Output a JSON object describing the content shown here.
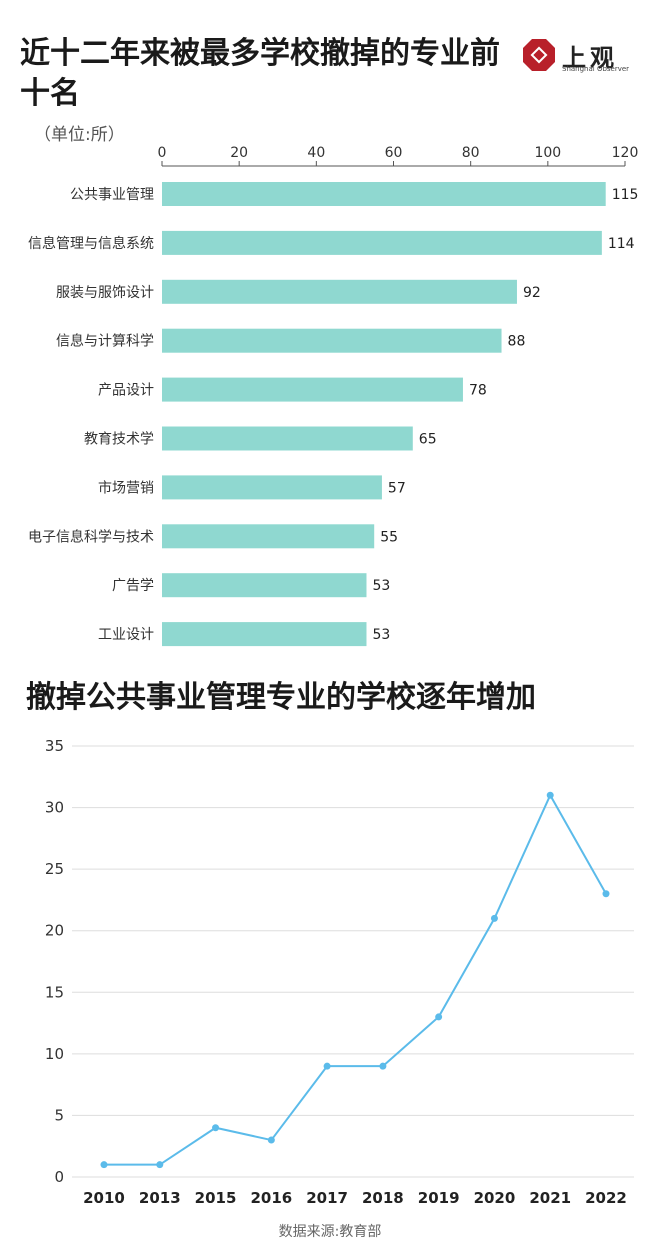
{
  "header": {
    "title": "近十二年来被最多学校撤掉的专业前十名",
    "unit": "（单位:所）",
    "logo_cn": "上观",
    "logo_en": "Shanghai Observer",
    "logo_color": "#b8202a"
  },
  "line_title": "撤掉公共事业管理专业的学校逐年增加",
  "source": "数据来源:教育部",
  "colors": {
    "bar": "#8fd8d0",
    "line": "#5bbbea",
    "grid": "#dddddd"
  },
  "chart_data": [
    {
      "type": "bar",
      "orientation": "horizontal",
      "title": "近十二年来被最多学校撤掉的专业前十名",
      "xlabel": "（单位:所）",
      "xlim": [
        0,
        120
      ],
      "xticks": [
        0,
        20,
        40,
        60,
        80,
        100,
        120
      ],
      "categories": [
        "公共事业管理",
        "信息管理与信息系统",
        "服装与服饰设计",
        "信息与计算科学",
        "产品设计",
        "教育技术学",
        "市场营销",
        "电子信息科学与技术",
        "广告学",
        "工业设计"
      ],
      "values": [
        115,
        114,
        92,
        88,
        78,
        65,
        57,
        55,
        53,
        53
      ]
    },
    {
      "type": "line",
      "title": "撤掉公共事业管理专业的学校逐年增加",
      "x": [
        "2010",
        "2013",
        "2015",
        "2016",
        "2017",
        "2018",
        "2019",
        "2020",
        "2021",
        "2022"
      ],
      "values": [
        1,
        1,
        4,
        3,
        9,
        9,
        13,
        21,
        31,
        23
      ],
      "ylim": [
        0,
        35
      ],
      "yticks": [
        0,
        5,
        10,
        15,
        20,
        25,
        30,
        35
      ]
    }
  ]
}
